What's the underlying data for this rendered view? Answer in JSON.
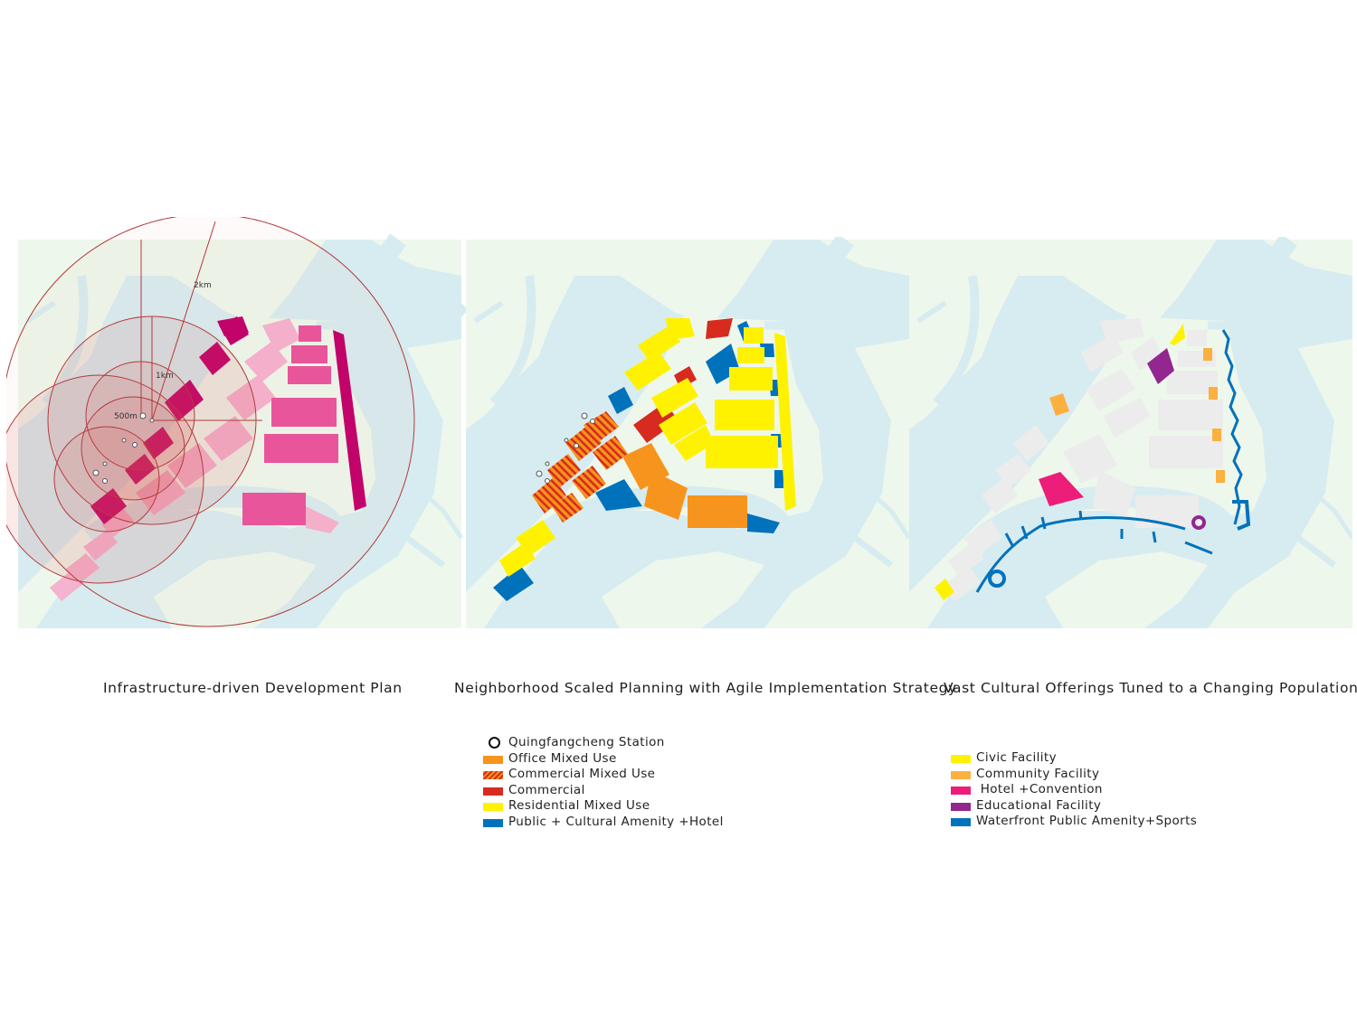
{
  "panels": [
    {
      "caption": "Infrastructure-driven Development Plan",
      "labels": {
        "r2km": "2km",
        "r1km": "1km",
        "r500m": "500m"
      }
    },
    {
      "caption": "Neighborhood Scaled Planning with Agile Implementation Strategy"
    },
    {
      "caption": "Vast Cultural Offerings Tuned to a Changing Population"
    }
  ],
  "legend_land_use": [
    {
      "label": "Quingfangcheng Station",
      "swatch": "ring",
      "color": "#111111"
    },
    {
      "label": "Office Mixed Use",
      "swatch": "solid",
      "color": "#f7941d"
    },
    {
      "label": "Commercial Mixed Use",
      "swatch": "hatch",
      "color": "#f15a24"
    },
    {
      "label": "Commercial",
      "swatch": "solid",
      "color": "#d62b1e"
    },
    {
      "label": "Residential Mixed Use",
      "swatch": "solid",
      "color": "#fff200"
    },
    {
      "label": "Public + Cultural Amenity +Hotel",
      "swatch": "solid",
      "color": "#0072bc"
    }
  ],
  "legend_culture": [
    {
      "label": "Civic Facility",
      "swatch": "solid",
      "color": "#fff200"
    },
    {
      "label": "Community Facility",
      "swatch": "solid",
      "color": "#fbb040"
    },
    {
      "label": " Hotel +Convention",
      "swatch": "solid",
      "color": "#ec1e79"
    },
    {
      "label": "Educational Facility",
      "swatch": "solid",
      "color": "#92278f"
    },
    {
      "label": "Waterfront Public Amenity+Sports",
      "swatch": "solid",
      "color": "#0072bc"
    }
  ],
  "colors": {
    "water": "#d7ecf0",
    "land": "#eef7ec",
    "block_grey": "#ececec",
    "pink_light": "#f5b3cf",
    "pink_mid": "#e9559d",
    "pink_dark": "#c2006b",
    "ring_stroke": "#b23a3a",
    "ring_fill": "#d9534f"
  }
}
